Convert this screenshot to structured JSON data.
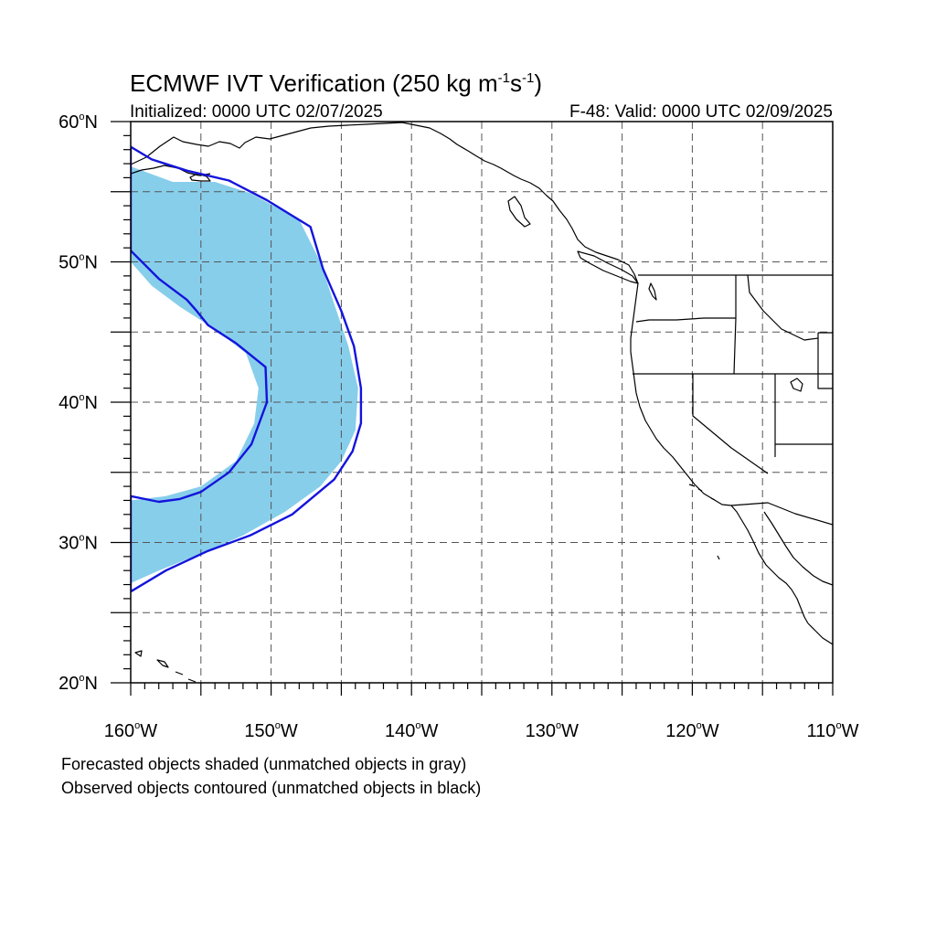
{
  "title": {
    "prefix": "ECMWF IVT Verification (250 kg m",
    "exp1": "-1",
    "mid": "s",
    "exp2": "-1",
    "suffix": ")"
  },
  "init_label": "Initialized: 0000 UTC 02/07/2025",
  "valid_label": "F-48: Valid: 0000 UTC 02/09/2025",
  "map": {
    "lon_range": [
      -160,
      -110
    ],
    "lat_range": [
      20,
      60
    ],
    "lon_ticks": [
      {
        "value": -160,
        "label": "160"
      },
      {
        "value": -150,
        "label": "150"
      },
      {
        "value": -140,
        "label": "140"
      },
      {
        "value": -130,
        "label": "130"
      },
      {
        "value": -120,
        "label": "120"
      },
      {
        "value": -110,
        "label": "110"
      }
    ],
    "lat_ticks": [
      {
        "value": 60,
        "label": "60"
      },
      {
        "value": 50,
        "label": "50"
      },
      {
        "value": 40,
        "label": "40"
      },
      {
        "value": 30,
        "label": "30"
      },
      {
        "value": 20,
        "label": "20"
      }
    ],
    "lon_hemisphere": "W",
    "lat_hemisphere": "N",
    "degree_symbol": "o",
    "grid": true,
    "grid_interval_deg": 5,
    "colors": {
      "forecast_fill": "#87ceeb",
      "observed_contour": "#1414dc",
      "coastline": "#000000",
      "grid": "#555555"
    },
    "forecast_object": {
      "outer": [
        [
          -160,
          56.8
        ],
        [
          -157,
          55.7
        ],
        [
          -154,
          55.7
        ],
        [
          -151.5,
          54.9
        ],
        [
          -148,
          53
        ],
        [
          -146.5,
          50
        ],
        [
          -145.5,
          47
        ],
        [
          -144.5,
          44
        ],
        [
          -143.8,
          41
        ],
        [
          -144,
          38
        ],
        [
          -145,
          35.8
        ],
        [
          -146.5,
          34
        ],
        [
          -149,
          32.2
        ],
        [
          -152,
          30.5
        ],
        [
          -155,
          29.2
        ],
        [
          -158,
          28
        ],
        [
          -160,
          27.1
        ]
      ],
      "inner": [
        [
          -160,
          33
        ],
        [
          -157.5,
          33.3
        ],
        [
          -155,
          34
        ],
        [
          -152.5,
          35.8
        ],
        [
          -151.2,
          38.5
        ],
        [
          -150.9,
          41
        ],
        [
          -151.8,
          43.5
        ],
        [
          -154,
          45.2
        ],
        [
          -156.5,
          46.8
        ],
        [
          -158.5,
          48.3
        ],
        [
          -160,
          50
        ]
      ]
    },
    "observed_object": {
      "outer": [
        [
          -160,
          58.2
        ],
        [
          -158.5,
          57.3
        ],
        [
          -156,
          56.5
        ],
        [
          -153,
          55.8
        ],
        [
          -150.3,
          54.4
        ],
        [
          -147.2,
          52.5
        ],
        [
          -146.3,
          49.5
        ],
        [
          -145,
          46.5
        ],
        [
          -144.1,
          44
        ],
        [
          -143.6,
          41
        ],
        [
          -143.6,
          38.5
        ],
        [
          -144.2,
          36.5
        ],
        [
          -145.5,
          34.5
        ],
        [
          -148.5,
          32
        ],
        [
          -151.5,
          30.5
        ],
        [
          -154.5,
          29.4
        ],
        [
          -157.5,
          28
        ],
        [
          -160,
          26.5
        ]
      ],
      "inner": [
        [
          -160,
          33.3
        ],
        [
          -158,
          32.9
        ],
        [
          -156.5,
          33.1
        ],
        [
          -155,
          33.6
        ],
        [
          -153,
          35
        ],
        [
          -151.4,
          37
        ],
        [
          -150.3,
          40
        ],
        [
          -150.4,
          42.5
        ],
        [
          -152.5,
          44.2
        ],
        [
          -154.5,
          45.5
        ],
        [
          -155.3,
          46.5
        ],
        [
          -156,
          47.3
        ],
        [
          -158,
          48.8
        ],
        [
          -160,
          50.8
        ]
      ]
    }
  },
  "footnote_forecast": "Forecasted objects shaded (unmatched objects in gray)",
  "footnote_observed": "Observed objects contoured (unmatched objects in black)"
}
